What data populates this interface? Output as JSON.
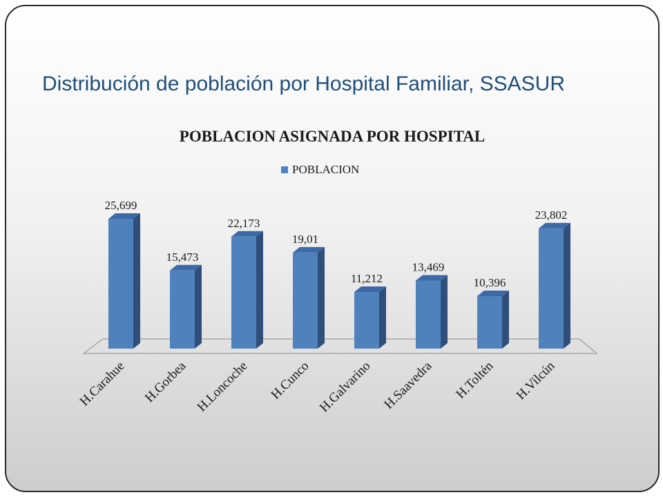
{
  "slide": {
    "title": "Distribución de población por Hospital Familiar, SSASUR"
  },
  "colors": {
    "bar_front": "#4f81bd",
    "bar_side": "#2f4f7a",
    "bar_top": "#3b6aa6",
    "title": "#1f4e79"
  },
  "chart_data": {
    "type": "bar",
    "title": "POBLACION ASIGNADA POR HOSPITAL",
    "legend_position": "top",
    "grid": false,
    "categories": [
      "H.Carahue",
      "H.Gorbea",
      "H.Loncoche",
      "H.Cunco",
      "H.Galvarino",
      "H.Saavedra",
      "H.Toltén",
      "H.Vilcún"
    ],
    "series": [
      {
        "name": "POBLACION",
        "values": [
          25.699,
          15.473,
          22.173,
          19.01,
          11.212,
          13.469,
          10.396,
          23.802
        ],
        "labels": [
          "25,699",
          "15,473",
          "22,173",
          "19,01",
          "11,212",
          "13,469",
          "10,396",
          "23,802"
        ]
      }
    ],
    "ylim": [
      0,
      27
    ]
  }
}
